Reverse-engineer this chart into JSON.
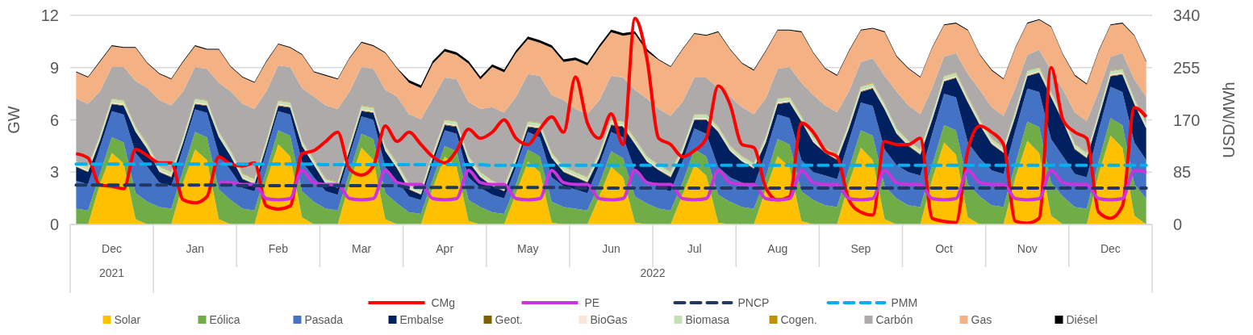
{
  "chart_data": {
    "type": "area",
    "stacked": true,
    "ylabel": "GW",
    "y2label": "USD/MWh",
    "ylim": [
      0,
      12
    ],
    "yticks": [
      0,
      3,
      6,
      9,
      12
    ],
    "y2lim": [
      0,
      340
    ],
    "y2ticks": [
      0,
      85,
      170,
      255,
      340
    ],
    "grid": "y",
    "legend": "bottom",
    "annotations": [
      "2021",
      "2022"
    ],
    "categories": [
      null,
      null,
      null,
      "Dec",
      null,
      null,
      null,
      null,
      null,
      null,
      "Jan",
      null,
      null,
      null,
      null,
      null,
      null,
      "Feb",
      null,
      null,
      null,
      null,
      null,
      null,
      "Mar",
      null,
      null,
      null,
      null,
      null,
      null,
      "Apr",
      null,
      null,
      null,
      null,
      null,
      null,
      "May",
      null,
      null,
      null,
      null,
      null,
      null,
      "Jun",
      null,
      null,
      null,
      null,
      null,
      null,
      "Jul",
      null,
      null,
      null,
      null,
      null,
      null,
      "Aug",
      null,
      null,
      null,
      null,
      null,
      null,
      "Sep",
      null,
      null,
      null,
      null,
      null,
      null,
      "Oct",
      null,
      null,
      null,
      null,
      null,
      null,
      "Nov",
      null,
      null,
      null,
      null,
      null,
      null,
      "Dec",
      null,
      null,
      null
    ],
    "series": [
      {
        "name": "Solar",
        "color": "#ffc000",
        "values": [
          0,
          0,
          2.3,
          4.1,
          3.5,
          0.3,
          0,
          0,
          0,
          2.4,
          4.3,
          3.7,
          0.3,
          0,
          0,
          0,
          2.5,
          4.6,
          3.9,
          0.4,
          0,
          0,
          0,
          2.4,
          4.4,
          3.7,
          0.3,
          0,
          0,
          0,
          2.1,
          3.9,
          3.3,
          0.2,
          0,
          0,
          0,
          1.8,
          3.6,
          3.0,
          0.1,
          0,
          0,
          0,
          1.6,
          3.3,
          2.7,
          0.1,
          0,
          0,
          0,
          1.7,
          3.4,
          2.8,
          0.1,
          0,
          0,
          0,
          2.0,
          3.9,
          3.3,
          0.2,
          0,
          0,
          0,
          2.4,
          4.4,
          3.7,
          0.3,
          0,
          0,
          0,
          2.6,
          4.7,
          4.0,
          0.4,
          0,
          0,
          0,
          2.7,
          4.8,
          4.1,
          0.5,
          0,
          0,
          0,
          2.9,
          5.1,
          4.4,
          0.5,
          0
        ]
      },
      {
        "name": "Eólica",
        "color": "#70ad47",
        "values": [
          0.9,
          0.8,
          0.6,
          0.9,
          1.2,
          1.5,
          1.3,
          1.0,
          0.9,
          0.7,
          1.0,
          1.3,
          1.7,
          1.4,
          0.9,
          0.8,
          0.6,
          0.8,
          1.2,
          1.5,
          1.3,
          0.9,
          0.8,
          0.6,
          0.8,
          1.2,
          1.5,
          1.2,
          0.7,
          0.6,
          0.5,
          0.6,
          0.9,
          1.2,
          1.0,
          0.7,
          0.6,
          0.5,
          0.7,
          0.9,
          1.2,
          1.0,
          0.9,
          0.8,
          0.7,
          0.9,
          1.1,
          1.5,
          1.2,
          0.9,
          0.8,
          0.7,
          0.9,
          1.1,
          1.6,
          1.3,
          1.0,
          0.9,
          0.7,
          1.0,
          1.3,
          1.7,
          1.4,
          1.1,
          1.0,
          0.8,
          1.0,
          1.4,
          1.9,
          1.5,
          1.1,
          1.0,
          0.8,
          1.0,
          1.4,
          1.9,
          1.6,
          1.1,
          1.0,
          0.8,
          1.1,
          1.5,
          1.9,
          1.6,
          1.0,
          0.9,
          0.7,
          1.0,
          1.3,
          1.8,
          1.5
        ]
      },
      {
        "name": "Pasada",
        "color": "#4472c4",
        "values": [
          1.6,
          1.5,
          1.5,
          1.5,
          1.6,
          2.3,
          2.0,
          1.4,
          1.3,
          1.3,
          1.3,
          1.4,
          2.0,
          1.7,
          1.2,
          1.1,
          1.1,
          1.1,
          1.2,
          1.7,
          1.4,
          1.0,
          0.9,
          1.0,
          1.0,
          1.1,
          1.5,
          1.3,
          0.9,
          0.8,
          0.9,
          0.9,
          1.0,
          1.3,
          1.1,
          1.0,
          0.9,
          1.0,
          1.0,
          1.1,
          1.4,
          1.2,
          1.1,
          1.0,
          1.1,
          1.1,
          1.2,
          1.5,
          1.3,
          1.2,
          1.1,
          1.2,
          1.2,
          1.3,
          1.6,
          1.4,
          1.4,
          1.3,
          1.4,
          1.4,
          1.5,
          1.8,
          1.6,
          1.7,
          1.6,
          1.6,
          1.6,
          1.7,
          2.1,
          1.9,
          1.9,
          1.8,
          1.8,
          1.8,
          1.9,
          2.4,
          2.2,
          2.0,
          1.9,
          1.9,
          1.9,
          2.0,
          2.5,
          2.3,
          1.9,
          1.8,
          1.8,
          1.8,
          1.9,
          2.4,
          2.2
        ]
      },
      {
        "name": "Embalse",
        "color": "#002060",
        "values": [
          0.8,
          0.7,
          0.4,
          0.4,
          0.5,
          1.2,
          1.0,
          0.6,
          0.5,
          0.3,
          0.3,
          0.4,
          1.0,
          0.8,
          0.5,
          0.4,
          0.3,
          0.3,
          0.4,
          0.9,
          0.7,
          0.4,
          0.4,
          0.3,
          0.3,
          0.4,
          0.9,
          0.7,
          0.4,
          0.3,
          0.3,
          0.3,
          0.4,
          0.9,
          0.6,
          0.5,
          0.4,
          0.3,
          0.3,
          0.5,
          1.1,
          0.8,
          0.7,
          0.6,
          0.4,
          0.4,
          0.6,
          1.5,
          1.1,
          1.0,
          0.8,
          0.5,
          0.5,
          0.8,
          2.0,
          1.5,
          1.2,
          1.0,
          0.6,
          0.6,
          0.9,
          2.2,
          1.7,
          1.3,
          1.1,
          0.7,
          0.6,
          1.0,
          2.3,
          1.8,
          1.5,
          1.2,
          0.8,
          0.7,
          1.1,
          2.3,
          1.9,
          1.5,
          1.2,
          0.8,
          0.7,
          1.1,
          2.4,
          2.0,
          1.4,
          1.1,
          0.7,
          0.6,
          1.0,
          2.2,
          1.8
        ]
      },
      {
        "name": "Geot.",
        "color": "#7f6000",
        "values": [
          0.04,
          0.04,
          0.04,
          0.04,
          0.04,
          0.04,
          0.04,
          0.04,
          0.04,
          0.04,
          0.04,
          0.04,
          0.04,
          0.04,
          0.04,
          0.04,
          0.04,
          0.04,
          0.04,
          0.04,
          0.04,
          0.04,
          0.04,
          0.04,
          0.04,
          0.04,
          0.04,
          0.04,
          0.04,
          0.04,
          0.04,
          0.04,
          0.04,
          0.04,
          0.04,
          0.04,
          0.04,
          0.04,
          0.04,
          0.04,
          0.04,
          0.04,
          0.04,
          0.04,
          0.04,
          0.04,
          0.04,
          0.04,
          0.04,
          0.04,
          0.04,
          0.04,
          0.04,
          0.04,
          0.04,
          0.04,
          0.04,
          0.04,
          0.04,
          0.04,
          0.04,
          0.04,
          0.04,
          0.04,
          0.04,
          0.04,
          0.04,
          0.04,
          0.04,
          0.04,
          0.04,
          0.04,
          0.04,
          0.04,
          0.04,
          0.04,
          0.04,
          0.04,
          0.04,
          0.04,
          0.04,
          0.04,
          0.04,
          0.04,
          0.04,
          0.04,
          0.04,
          0.04,
          0.04,
          0.04,
          0.04
        ]
      },
      {
        "name": "BioGas",
        "color": "#fbe5d6",
        "values": [
          0.06,
          0.06,
          0.06,
          0.06,
          0.06,
          0.06,
          0.06,
          0.06,
          0.06,
          0.06,
          0.06,
          0.06,
          0.06,
          0.06,
          0.06,
          0.06,
          0.06,
          0.06,
          0.06,
          0.06,
          0.06,
          0.06,
          0.06,
          0.06,
          0.06,
          0.06,
          0.06,
          0.06,
          0.06,
          0.06,
          0.06,
          0.06,
          0.06,
          0.06,
          0.06,
          0.06,
          0.06,
          0.06,
          0.06,
          0.06,
          0.06,
          0.06,
          0.06,
          0.06,
          0.06,
          0.06,
          0.06,
          0.06,
          0.06,
          0.06,
          0.06,
          0.06,
          0.06,
          0.06,
          0.06,
          0.06,
          0.06,
          0.06,
          0.06,
          0.06,
          0.06,
          0.06,
          0.06,
          0.06,
          0.06,
          0.06,
          0.06,
          0.06,
          0.06,
          0.06,
          0.06,
          0.06,
          0.06,
          0.06,
          0.06,
          0.06,
          0.06,
          0.06,
          0.06,
          0.06,
          0.06,
          0.06,
          0.06,
          0.06,
          0.06,
          0.06,
          0.06,
          0.06,
          0.06,
          0.06,
          0.06
        ]
      },
      {
        "name": "Biomasa",
        "color": "#c5e0b4",
        "values": [
          0.2,
          0.2,
          0.2,
          0.2,
          0.2,
          0.2,
          0.2,
          0.2,
          0.2,
          0.2,
          0.2,
          0.2,
          0.2,
          0.2,
          0.2,
          0.2,
          0.2,
          0.2,
          0.2,
          0.2,
          0.2,
          0.2,
          0.2,
          0.2,
          0.2,
          0.2,
          0.2,
          0.2,
          0.2,
          0.2,
          0.2,
          0.2,
          0.2,
          0.2,
          0.2,
          0.2,
          0.2,
          0.2,
          0.2,
          0.2,
          0.2,
          0.2,
          0.2,
          0.2,
          0.2,
          0.2,
          0.2,
          0.2,
          0.2,
          0.2,
          0.2,
          0.2,
          0.2,
          0.2,
          0.2,
          0.2,
          0.2,
          0.2,
          0.2,
          0.2,
          0.2,
          0.2,
          0.2,
          0.2,
          0.2,
          0.2,
          0.2,
          0.2,
          0.2,
          0.2,
          0.2,
          0.2,
          0.2,
          0.2,
          0.2,
          0.2,
          0.2,
          0.2,
          0.2,
          0.2,
          0.2,
          0.2,
          0.2,
          0.2,
          0.2,
          0.2,
          0.2,
          0.2,
          0.2,
          0.2,
          0.2
        ]
      },
      {
        "name": "Cogen.",
        "color": "#bf9000",
        "values": [
          0.03,
          0.03,
          0.03,
          0.03,
          0.03,
          0.03,
          0.03,
          0.03,
          0.03,
          0.03,
          0.03,
          0.03,
          0.03,
          0.03,
          0.03,
          0.03,
          0.03,
          0.03,
          0.03,
          0.03,
          0.03,
          0.03,
          0.03,
          0.03,
          0.03,
          0.03,
          0.03,
          0.03,
          0.03,
          0.03,
          0.03,
          0.03,
          0.03,
          0.03,
          0.03,
          0.03,
          0.03,
          0.03,
          0.03,
          0.03,
          0.03,
          0.03,
          0.03,
          0.03,
          0.03,
          0.03,
          0.03,
          0.03,
          0.03,
          0.03,
          0.03,
          0.03,
          0.03,
          0.03,
          0.03,
          0.03,
          0.03,
          0.03,
          0.03,
          0.03,
          0.03,
          0.03,
          0.03,
          0.03,
          0.03,
          0.03,
          0.03,
          0.03,
          0.03,
          0.03,
          0.03,
          0.03,
          0.03,
          0.03,
          0.03,
          0.03,
          0.03,
          0.03,
          0.03,
          0.03,
          0.03,
          0.03,
          0.03,
          0.03,
          0.03,
          0.03,
          0.03,
          0.03,
          0.03,
          0.03,
          0.03
        ]
      },
      {
        "name": "Carbón",
        "color": "#aeaaaa",
        "values": [
          3.6,
          3.6,
          2.5,
          1.8,
          1.9,
          2.6,
          3.2,
          3.8,
          3.8,
          2.6,
          1.8,
          1.8,
          2.8,
          3.4,
          4.0,
          4.0,
          2.8,
          2.0,
          2.0,
          3.0,
          3.6,
          4.2,
          4.2,
          3.0,
          2.2,
          2.2,
          3.2,
          3.8,
          4.0,
          4.0,
          3.1,
          2.4,
          2.4,
          3.1,
          3.6,
          4.2,
          4.2,
          3.4,
          2.7,
          2.7,
          3.3,
          3.8,
          3.6,
          3.6,
          3.0,
          2.5,
          2.5,
          2.8,
          3.3,
          3.2,
          3.2,
          2.6,
          2.1,
          2.1,
          2.2,
          2.8,
          2.8,
          2.8,
          2.2,
          1.7,
          1.7,
          1.9,
          2.4,
          2.4,
          2.4,
          1.8,
          1.4,
          1.4,
          1.6,
          2.1,
          2.0,
          2.0,
          1.5,
          1.1,
          1.1,
          1.3,
          1.7,
          1.8,
          1.8,
          1.3,
          0.9,
          1.0,
          1.2,
          1.5,
          1.8,
          1.8,
          1.2,
          0.8,
          0.9,
          1.1,
          1.5
        ]
      },
      {
        "name": "Gas",
        "color": "#f4b183",
        "values": [
          1.5,
          1.5,
          1.7,
          1.2,
          1.1,
          1.9,
          1.4,
          1.5,
          1.5,
          1.7,
          1.2,
          1.1,
          1.9,
          1.4,
          1.5,
          1.5,
          1.7,
          1.2,
          1.1,
          1.9,
          1.4,
          1.7,
          1.7,
          1.9,
          1.4,
          1.3,
          2.1,
          1.6,
          1.8,
          1.8,
          2.0,
          1.5,
          1.4,
          2.2,
          1.7,
          2.3,
          2.3,
          2.5,
          2.0,
          1.9,
          2.7,
          2.2,
          2.8,
          2.8,
          3.0,
          2.5,
          2.4,
          3.2,
          2.7,
          2.8,
          2.8,
          3.0,
          2.5,
          2.4,
          3.2,
          2.7,
          2.5,
          2.5,
          2.7,
          2.2,
          2.1,
          2.9,
          2.4,
          2.1,
          2.1,
          2.3,
          1.8,
          1.7,
          2.5,
          2.0,
          2.1,
          2.1,
          2.3,
          1.8,
          1.7,
          2.5,
          2.0,
          2.1,
          2.1,
          2.3,
          1.8,
          1.7,
          2.5,
          2.0,
          2.1,
          2.1,
          2.3,
          1.8,
          1.7,
          2.5,
          2.0
        ]
      },
      {
        "name": "Diésel",
        "color": "#000000",
        "values": [
          0.05,
          0.05,
          0.05,
          0.05,
          0.05,
          0.05,
          0.05,
          0.05,
          0.05,
          0.05,
          0.05,
          0.05,
          0.05,
          0.05,
          0.05,
          0.05,
          0.05,
          0.05,
          0.05,
          0.05,
          0.05,
          0.05,
          0.05,
          0.05,
          0.05,
          0.05,
          0.05,
          0.05,
          0.15,
          0.15,
          0.15,
          0.15,
          0.15,
          0.15,
          0.15,
          0.15,
          0.15,
          0.15,
          0.15,
          0.15,
          0.15,
          0.15,
          0.15,
          0.15,
          0.15,
          0.15,
          0.15,
          0.15,
          0.15,
          0.05,
          0.05,
          0.05,
          0.05,
          0.05,
          0.05,
          0.05,
          0.05,
          0.05,
          0.05,
          0.05,
          0.05,
          0.05,
          0.05,
          0.05,
          0.05,
          0.05,
          0.05,
          0.05,
          0.05,
          0.05,
          0.05,
          0.05,
          0.05,
          0.05,
          0.05,
          0.05,
          0.05,
          0.05,
          0.05,
          0.05,
          0.05,
          0.05,
          0.05,
          0.05,
          0.05,
          0.05,
          0.05,
          0.05,
          0.05,
          0.05,
          0.05
        ]
      },
      {
        "name": "CMg",
        "type": "line",
        "axis": "y2",
        "color": "#ff0000",
        "line_style": "solid",
        "values": [
          115,
          108,
          64,
          62,
          58,
          122,
          112,
          100,
          100,
          40,
          35,
          45,
          110,
          98,
          95,
          100,
          30,
          25,
          30,
          115,
          120,
          135,
          150,
          90,
          80,
          95,
          160,
          135,
          150,
          130,
          110,
          100,
          120,
          155,
          140,
          150,
          170,
          140,
          130,
          155,
          175,
          150,
          240,
          165,
          140,
          180,
          130,
          335,
          270,
          140,
          130,
          110,
          120,
          140,
          225,
          195,
          130,
          125,
          60,
          40,
          45,
          165,
          150,
          120,
          110,
          40,
          20,
          15,
          135,
          130,
          130,
          140,
          10,
          5,
          3,
          120,
          160,
          150,
          130,
          5,
          2,
          10,
          255,
          170,
          150,
          140,
          20,
          10,
          30,
          190,
          175
        ]
      },
      {
        "name": "PE",
        "type": "line",
        "axis": "y2",
        "color": "#cc33dd",
        "line_style": "solid",
        "values": [
          null,
          null,
          null,
          null,
          null,
          null,
          null,
          null,
          null,
          null,
          null,
          null,
          68,
          68,
          65,
          65,
          42,
          40,
          42,
          88,
          68,
          65,
          65,
          42,
          40,
          42,
          88,
          68,
          65,
          65,
          42,
          40,
          42,
          88,
          68,
          65,
          65,
          42,
          40,
          42,
          88,
          68,
          65,
          65,
          42,
          40,
          42,
          88,
          68,
          65,
          65,
          42,
          40,
          42,
          88,
          68,
          65,
          65,
          42,
          40,
          42,
          88,
          68,
          65,
          65,
          42,
          40,
          42,
          88,
          68,
          65,
          65,
          42,
          40,
          42,
          88,
          68,
          65,
          65,
          42,
          40,
          42,
          88,
          68,
          65,
          65,
          42,
          40,
          42,
          88,
          85
        ]
      },
      {
        "name": "PNCP",
        "type": "line",
        "axis": "y2",
        "color": "#1f3864",
        "line_style": "dashed",
        "values": [
          64,
          64,
          64,
          64,
          64,
          64,
          64,
          64,
          64,
          64,
          64,
          64,
          64,
          64,
          63,
          63,
          63,
          63,
          63,
          63,
          63,
          63,
          63,
          63,
          63,
          63,
          63,
          63,
          60,
          60,
          60,
          60,
          60,
          60,
          60,
          60,
          60,
          60,
          60,
          60,
          60,
          60,
          59,
          59,
          59,
          59,
          59,
          59,
          59,
          59,
          59,
          59,
          59,
          59,
          59,
          59,
          59,
          59,
          59,
          59,
          59,
          59,
          59,
          59,
          59,
          59,
          59,
          59,
          59,
          59,
          59,
          59,
          59,
          59,
          59,
          59,
          59,
          59,
          59,
          59,
          59,
          59,
          59,
          59,
          59,
          59,
          59,
          59,
          59,
          59,
          59
        ]
      },
      {
        "name": "PMM",
        "type": "line",
        "axis": "y2",
        "color": "#00b0f0",
        "line_style": "dashed",
        "values": [
          98,
          98,
          98,
          98,
          98,
          98,
          98,
          98,
          98,
          98,
          98,
          98,
          98,
          98,
          98,
          98,
          98,
          98,
          98,
          98,
          98,
          97,
          97,
          97,
          97,
          97,
          97,
          97,
          97,
          97,
          97,
          97,
          97,
          97,
          97,
          96,
          96,
          96,
          96,
          96,
          96,
          96,
          96,
          96,
          96,
          96,
          96,
          96,
          96,
          96,
          96,
          96,
          96,
          96,
          96,
          96,
          96,
          96,
          96,
          96,
          96,
          96,
          96,
          96,
          96,
          96,
          96,
          96,
          96,
          96,
          96,
          96,
          96,
          96,
          96,
          96,
          96,
          96,
          96,
          96,
          96,
          96,
          96,
          96,
          96,
          96,
          96,
          96,
          96,
          96,
          96
        ]
      }
    ]
  }
}
